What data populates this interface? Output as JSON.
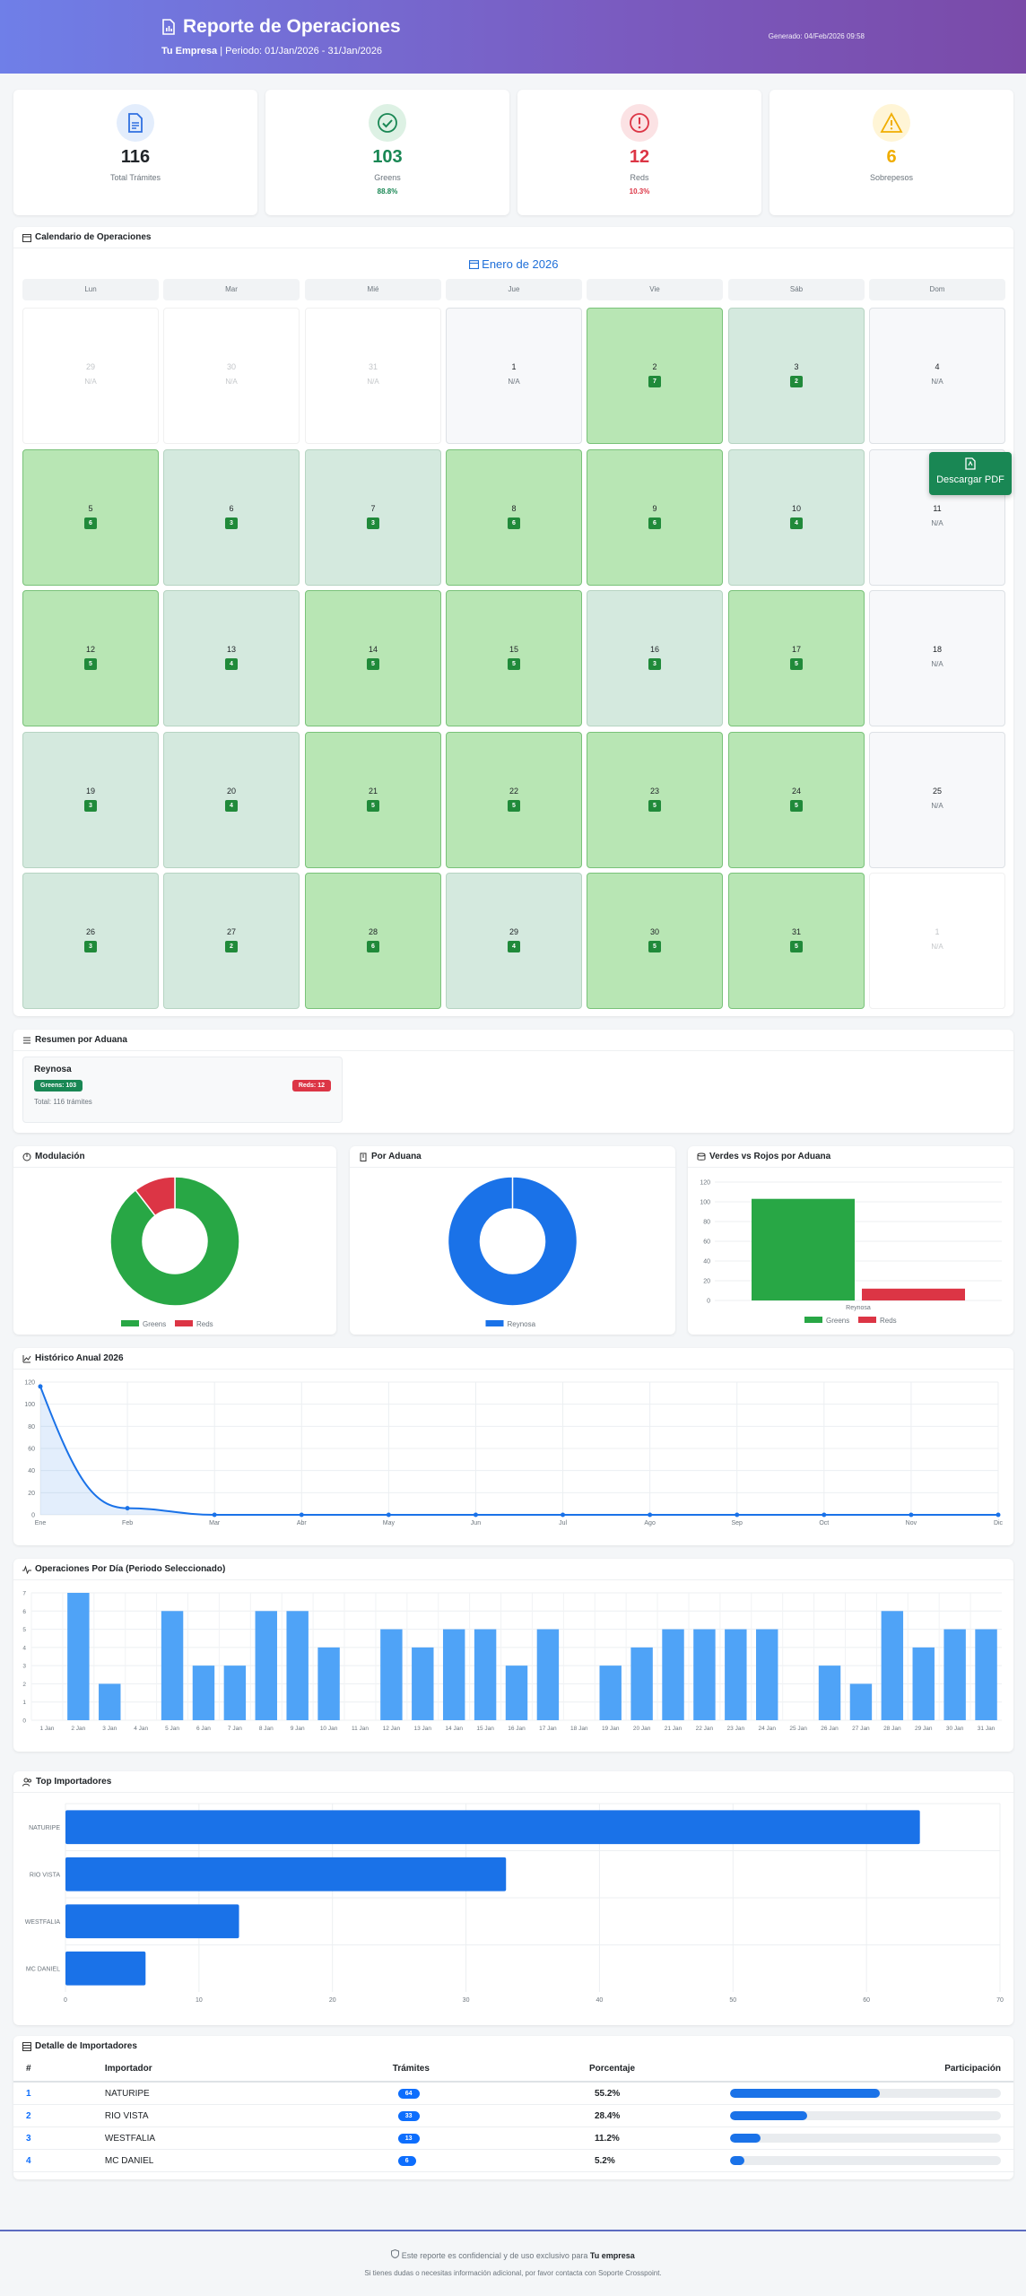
{
  "header": {
    "title": "Reporte de Operaciones",
    "company": "Tu Empresa",
    "period": "Periodo: 01/Jan/2026 - 31/Jan/2026",
    "generated": "Generado: 04/Feb/2026 09:58"
  },
  "stats": [
    {
      "value": "116",
      "label": "Total Trámites",
      "pct": "",
      "icon": "document-icon",
      "color": "#2f6fe0"
    },
    {
      "value": "103",
      "label": "Greens",
      "pct": "88.8%",
      "icon": "check-circle-icon",
      "color": "#198754"
    },
    {
      "value": "12",
      "label": "Reds",
      "pct": "10.3%",
      "icon": "alert-circle-icon",
      "color": "#dc3545"
    },
    {
      "value": "6",
      "label": "Sobrepesos",
      "pct": "",
      "icon": "warning-triangle-icon",
      "color": "#f0ad00"
    }
  ],
  "calendar": {
    "section_title": "Calendario de Operaciones",
    "month": "Enero de 2026",
    "weekdays": [
      "Lun",
      "Mar",
      "Mié",
      "Jue",
      "Vie",
      "Sáb",
      "Dom"
    ],
    "days": [
      {
        "n": "29",
        "v": "N/A",
        "s": "o"
      },
      {
        "n": "30",
        "v": "N/A",
        "s": "o"
      },
      {
        "n": "31",
        "v": "N/A",
        "s": "o"
      },
      {
        "n": "1",
        "v": "N/A",
        "s": "e"
      },
      {
        "n": "2",
        "v": "7",
        "s": "g"
      },
      {
        "n": "3",
        "v": "2",
        "s": "l"
      },
      {
        "n": "4",
        "v": "N/A",
        "s": "e"
      },
      {
        "n": "5",
        "v": "6",
        "s": "g"
      },
      {
        "n": "6",
        "v": "3",
        "s": "l"
      },
      {
        "n": "7",
        "v": "3",
        "s": "l"
      },
      {
        "n": "8",
        "v": "6",
        "s": "g"
      },
      {
        "n": "9",
        "v": "6",
        "s": "g"
      },
      {
        "n": "10",
        "v": "4",
        "s": "l"
      },
      {
        "n": "11",
        "v": "N/A",
        "s": "e"
      },
      {
        "n": "12",
        "v": "5",
        "s": "g"
      },
      {
        "n": "13",
        "v": "4",
        "s": "l"
      },
      {
        "n": "14",
        "v": "5",
        "s": "g"
      },
      {
        "n": "15",
        "v": "5",
        "s": "g"
      },
      {
        "n": "16",
        "v": "3",
        "s": "l"
      },
      {
        "n": "17",
        "v": "5",
        "s": "g"
      },
      {
        "n": "18",
        "v": "N/A",
        "s": "e"
      },
      {
        "n": "19",
        "v": "3",
        "s": "l"
      },
      {
        "n": "20",
        "v": "4",
        "s": "l"
      },
      {
        "n": "21",
        "v": "5",
        "s": "g"
      },
      {
        "n": "22",
        "v": "5",
        "s": "g"
      },
      {
        "n": "23",
        "v": "5",
        "s": "g"
      },
      {
        "n": "24",
        "v": "5",
        "s": "g"
      },
      {
        "n": "25",
        "v": "N/A",
        "s": "e"
      },
      {
        "n": "26",
        "v": "3",
        "s": "l"
      },
      {
        "n": "27",
        "v": "2",
        "s": "l"
      },
      {
        "n": "28",
        "v": "6",
        "s": "g"
      },
      {
        "n": "29",
        "v": "4",
        "s": "l"
      },
      {
        "n": "30",
        "v": "5",
        "s": "g"
      },
      {
        "n": "31",
        "v": "5",
        "s": "g"
      },
      {
        "n": "1",
        "v": "N/A",
        "s": "o"
      }
    ]
  },
  "pdf_button": "Descargar PDF",
  "aduana_summary": {
    "section_title": "Resumen por Aduana",
    "name": "Reynosa",
    "greens": "Greens: 103",
    "reds": "Reds: 12",
    "total": "Total: 116 trámites"
  },
  "chart_titles": {
    "modulacion": "Modulación",
    "por_aduana": "Por Aduana",
    "verdes_rojos": "Verdes vs Rojos por Aduana",
    "historico": "Histórico Anual 2026",
    "por_dia": "Operaciones Por Día (Periodo Seleccionado)",
    "top_importadores": "Top Importadores"
  },
  "colors": {
    "green": "#28a745",
    "red": "#dc3545",
    "blue": "#1a72e8",
    "light_blue": "#4fa3f7"
  },
  "chart_data": [
    {
      "type": "pie",
      "title": "",
      "categories": [
        "Greens",
        "Reds"
      ],
      "values": [
        103,
        12
      ],
      "legend": "bottom"
    },
    {
      "type": "pie",
      "title": "",
      "categories": [
        "Reynosa"
      ],
      "values": [
        116
      ],
      "legend": "bottom"
    },
    {
      "type": "bar",
      "title": "",
      "categories": [
        "Reynosa"
      ],
      "series": [
        {
          "name": "Greens",
          "values": [
            103
          ]
        },
        {
          "name": "Reds",
          "values": [
            12
          ]
        }
      ],
      "ylim": [
        0,
        120
      ],
      "yticks": [
        "0",
        "20",
        "40",
        "60",
        "80",
        "100",
        "120"
      ],
      "legend": "bottom"
    },
    {
      "type": "area",
      "title": "",
      "categories": [
        "Ene",
        "Feb",
        "Mar",
        "Abr",
        "May",
        "Jun",
        "Jul",
        "Ago",
        "Sep",
        "Oct",
        "Nov",
        "Dic"
      ],
      "values": [
        116,
        6,
        0,
        0,
        0,
        0,
        0,
        0,
        0,
        0,
        0,
        0
      ],
      "ylim": [
        0,
        120
      ],
      "yticks": [
        "0",
        "20",
        "40",
        "60",
        "80",
        "100",
        "120"
      ]
    },
    {
      "type": "bar",
      "title": "",
      "categories": [
        "1 Jan",
        "2 Jan",
        "3 Jan",
        "4 Jan",
        "5 Jan",
        "6 Jan",
        "7 Jan",
        "8 Jan",
        "9 Jan",
        "10 Jan",
        "11 Jan",
        "12 Jan",
        "13 Jan",
        "14 Jan",
        "15 Jan",
        "16 Jan",
        "17 Jan",
        "18 Jan",
        "19 Jan",
        "20 Jan",
        "21 Jan",
        "22 Jan",
        "23 Jan",
        "24 Jan",
        "25 Jan",
        "26 Jan",
        "27 Jan",
        "28 Jan",
        "29 Jan",
        "30 Jan",
        "31 Jan"
      ],
      "values": [
        0,
        7,
        2,
        0,
        6,
        3,
        3,
        6,
        6,
        4,
        0,
        5,
        4,
        5,
        5,
        3,
        5,
        0,
        3,
        4,
        5,
        5,
        5,
        5,
        0,
        3,
        2,
        6,
        4,
        5,
        5
      ],
      "ylim": [
        0,
        7
      ],
      "yticks": [
        "0",
        "1",
        "2",
        "3",
        "4",
        "5",
        "6",
        "7"
      ]
    },
    {
      "type": "bar",
      "title": "",
      "orientation": "horizontal",
      "categories": [
        "NATURIPE",
        "RIO VISTA",
        "WESTFALIA",
        "MC DANIEL"
      ],
      "values": [
        64,
        33,
        13,
        6
      ],
      "xlim": [
        0,
        70
      ],
      "xticks": [
        "0",
        "10",
        "20",
        "30",
        "40",
        "50",
        "60",
        "70"
      ]
    }
  ],
  "table": {
    "section_title": "Detalle de Importadores",
    "headers": [
      "#",
      "Importador",
      "Trámites",
      "Porcentaje",
      "Participación"
    ],
    "rows": [
      {
        "idx": "1",
        "name": "NATURIPE",
        "count": "64",
        "pct": "55.2%",
        "share": 0.552
      },
      {
        "idx": "2",
        "name": "RIO VISTA",
        "count": "33",
        "pct": "28.4%",
        "share": 0.284
      },
      {
        "idx": "3",
        "name": "WESTFALIA",
        "count": "13",
        "pct": "11.2%",
        "share": 0.112
      },
      {
        "idx": "4",
        "name": "MC DANIEL",
        "count": "6",
        "pct": "5.2%",
        "share": 0.052
      }
    ]
  },
  "footer": {
    "line1_pre": "Este reporte es confidencial y de uso exclusivo para",
    "line1_company": "Tu empresa",
    "line2": "Si tienes dudas o necesitas información adicional, por favor contacta con Soporte Crosspoint."
  }
}
